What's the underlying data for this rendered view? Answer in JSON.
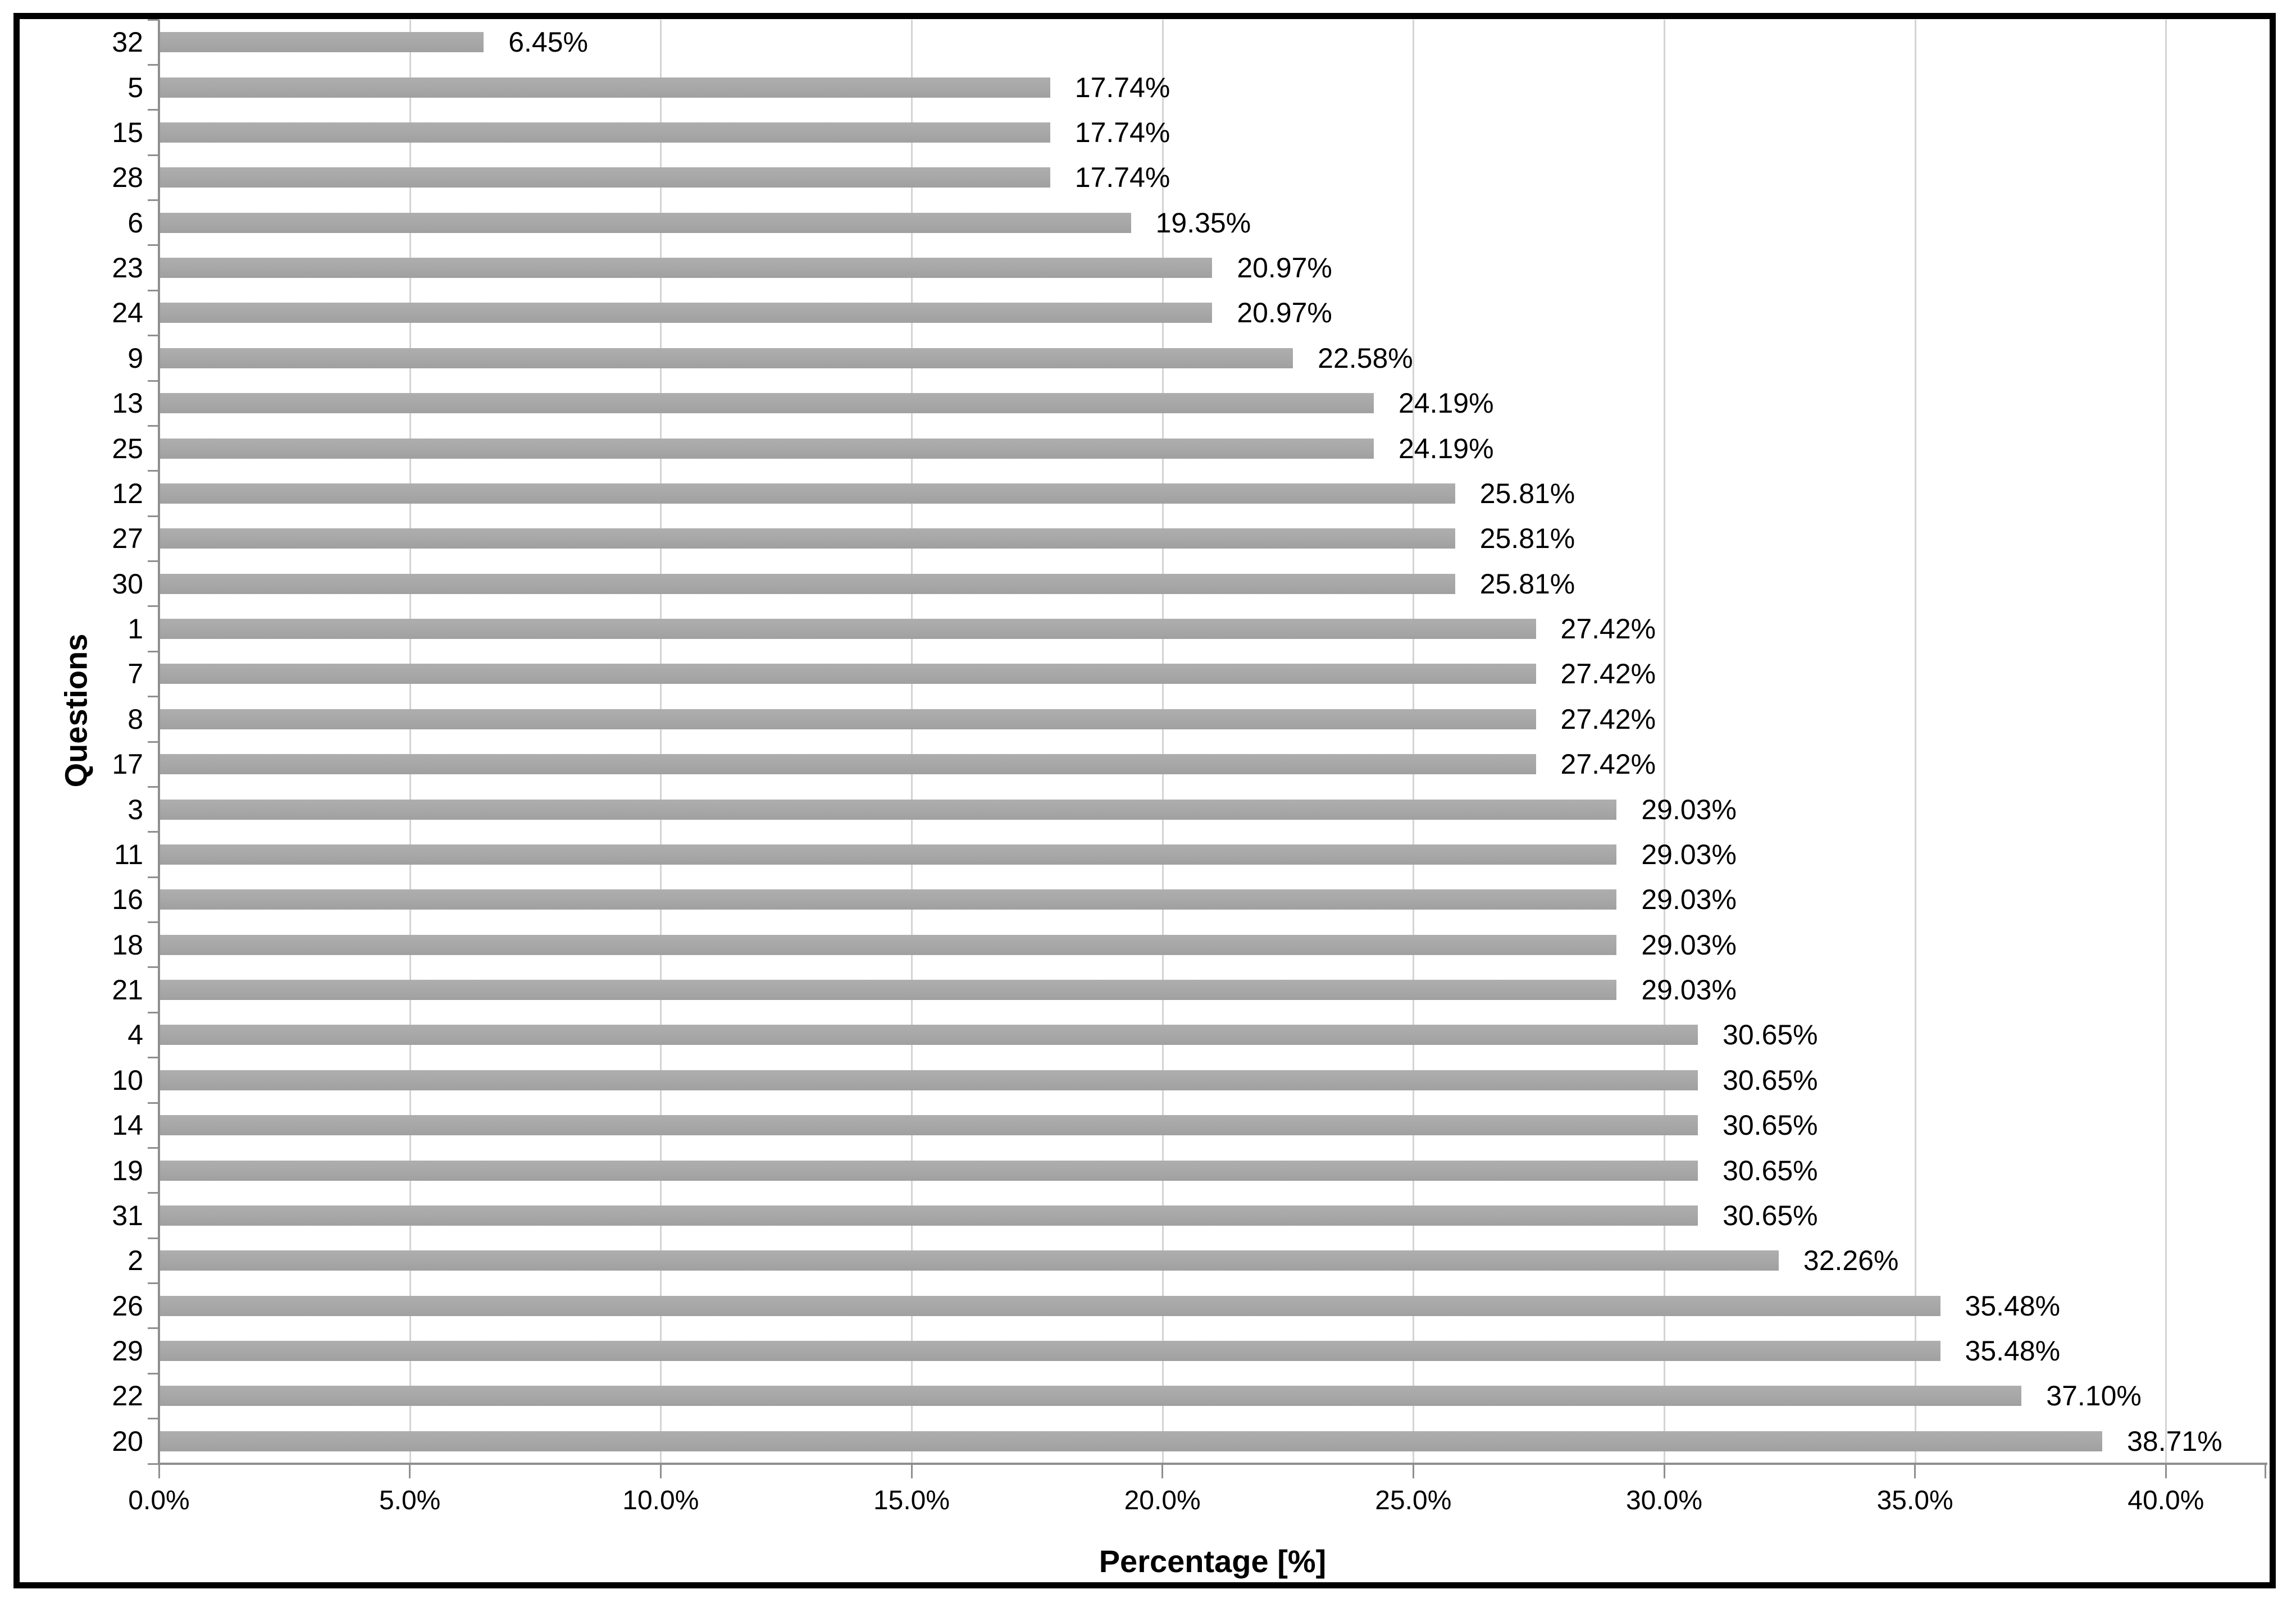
{
  "chart_data": {
    "type": "bar",
    "orientation": "horizontal",
    "title": "",
    "xlabel": "Percentage [%]",
    "ylabel": "Questions",
    "categories": [
      "32",
      "5",
      "15",
      "28",
      "6",
      "23",
      "24",
      "9",
      "13",
      "25",
      "12",
      "27",
      "30",
      "1",
      "7",
      "8",
      "17",
      "3",
      "11",
      "16",
      "18",
      "21",
      "4",
      "10",
      "14",
      "19",
      "31",
      "2",
      "26",
      "29",
      "22",
      "20"
    ],
    "values": [
      6.45,
      17.74,
      17.74,
      17.74,
      19.35,
      20.97,
      20.97,
      22.58,
      24.19,
      24.19,
      25.81,
      25.81,
      25.81,
      27.42,
      27.42,
      27.42,
      27.42,
      29.03,
      29.03,
      29.03,
      29.03,
      29.03,
      30.65,
      30.65,
      30.65,
      30.65,
      30.65,
      32.26,
      35.48,
      35.48,
      37.1,
      38.71
    ],
    "value_labels": [
      "6.45%",
      "17.74%",
      "17.74%",
      "17.74%",
      "19.35%",
      "20.97%",
      "20.97%",
      "22.58%",
      "24.19%",
      "24.19%",
      "25.81%",
      "25.81%",
      "25.81%",
      "27.42%",
      "27.42%",
      "27.42%",
      "27.42%",
      "29.03%",
      "29.03%",
      "29.03%",
      "29.03%",
      "29.03%",
      "30.65%",
      "30.65%",
      "30.65%",
      "30.65%",
      "30.65%",
      "32.26%",
      "35.48%",
      "35.48%",
      "37.10%",
      "38.71%"
    ],
    "x_tick_labels": [
      "0.0%",
      "5.0%",
      "10.0%",
      "15.0%",
      "20.0%",
      "25.0%",
      "30.0%",
      "35.0%",
      "40.0%"
    ],
    "x_tick_values": [
      0,
      5,
      10,
      15,
      20,
      25,
      30,
      35,
      40
    ],
    "xlim": [
      0,
      42
    ],
    "grid": true,
    "legend": "none",
    "colors": {
      "bar": "#a8a8a8",
      "gridline": "#d4d4d4",
      "axis": "#8f8f8f",
      "text": "#000000",
      "frame_border": "#000000",
      "background": "#ffffff"
    }
  }
}
